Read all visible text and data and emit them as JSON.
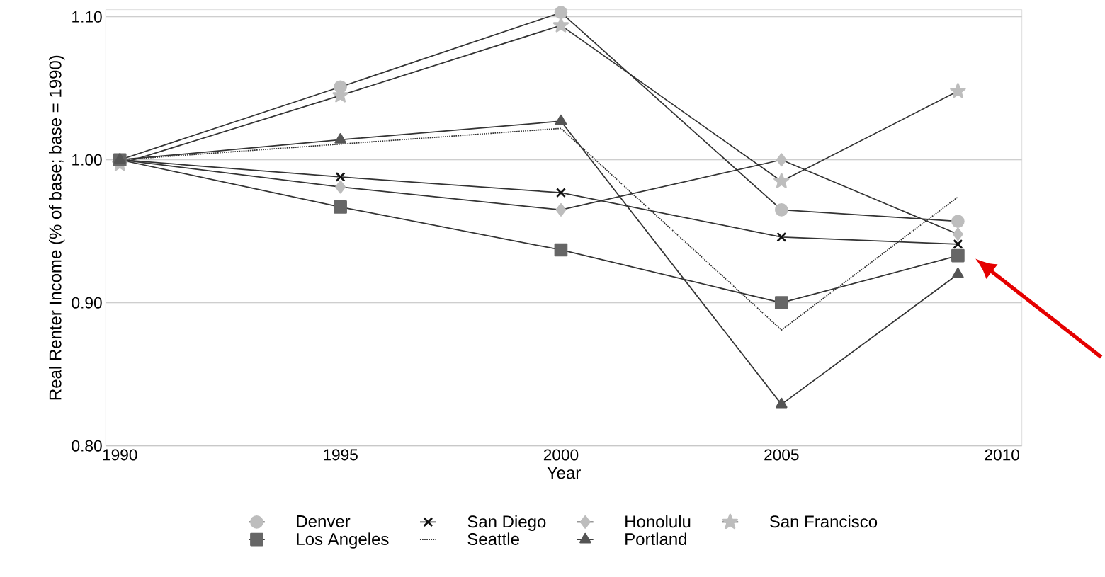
{
  "chart_data": {
    "type": "line",
    "xlabel": "Year",
    "ylabel": "Real Renter Income (% of base; base = 1990)",
    "x": [
      1990,
      1995,
      2000,
      2005,
      2009
    ],
    "xlim": [
      1989.68,
      2010.45
    ],
    "xticks": [
      1990,
      1995,
      2000,
      2005,
      2010
    ],
    "ylim": [
      0.8,
      1.105
    ],
    "yticks": [
      {
        "value": 0.8,
        "label": "0.80"
      },
      {
        "value": 0.9,
        "label": "0.90"
      },
      {
        "value": 1.0,
        "label": "1.00"
      },
      {
        "value": 1.1,
        "label": "1.10"
      }
    ],
    "grid": "y",
    "legend": "bottom",
    "series": [
      {
        "name": "Denver",
        "color": "#bdbdbd",
        "marker": "circle",
        "values": [
          1.0,
          1.051,
          1.103,
          0.965,
          0.957
        ]
      },
      {
        "name": "San Diego",
        "color": "#111111",
        "marker": "cross",
        "values": [
          1.0,
          0.988,
          0.977,
          0.946,
          0.941
        ]
      },
      {
        "name": "Honolulu",
        "color": "#bdbdbd",
        "marker": "diamond",
        "values": [
          1.0,
          0.981,
          0.965,
          1.0,
          0.948
        ]
      },
      {
        "name": "San Francisco",
        "color": "#bdbdbd",
        "marker": "star",
        "values": [
          0.997,
          1.045,
          1.094,
          0.985,
          1.048
        ]
      },
      {
        "name": "Los Angeles",
        "color": "#666666",
        "marker": "square",
        "values": [
          1.0,
          0.967,
          0.937,
          0.9,
          0.933
        ]
      },
      {
        "name": "Seattle",
        "color": "#333333",
        "marker": "none",
        "line_style": "dotted",
        "values": [
          1.0,
          1.011,
          1.022,
          0.881,
          0.974
        ]
      },
      {
        "name": "Portland",
        "color": "#555555",
        "marker": "triangle",
        "values": [
          1.0,
          1.014,
          1.027,
          0.829,
          0.92
        ]
      }
    ]
  }
}
